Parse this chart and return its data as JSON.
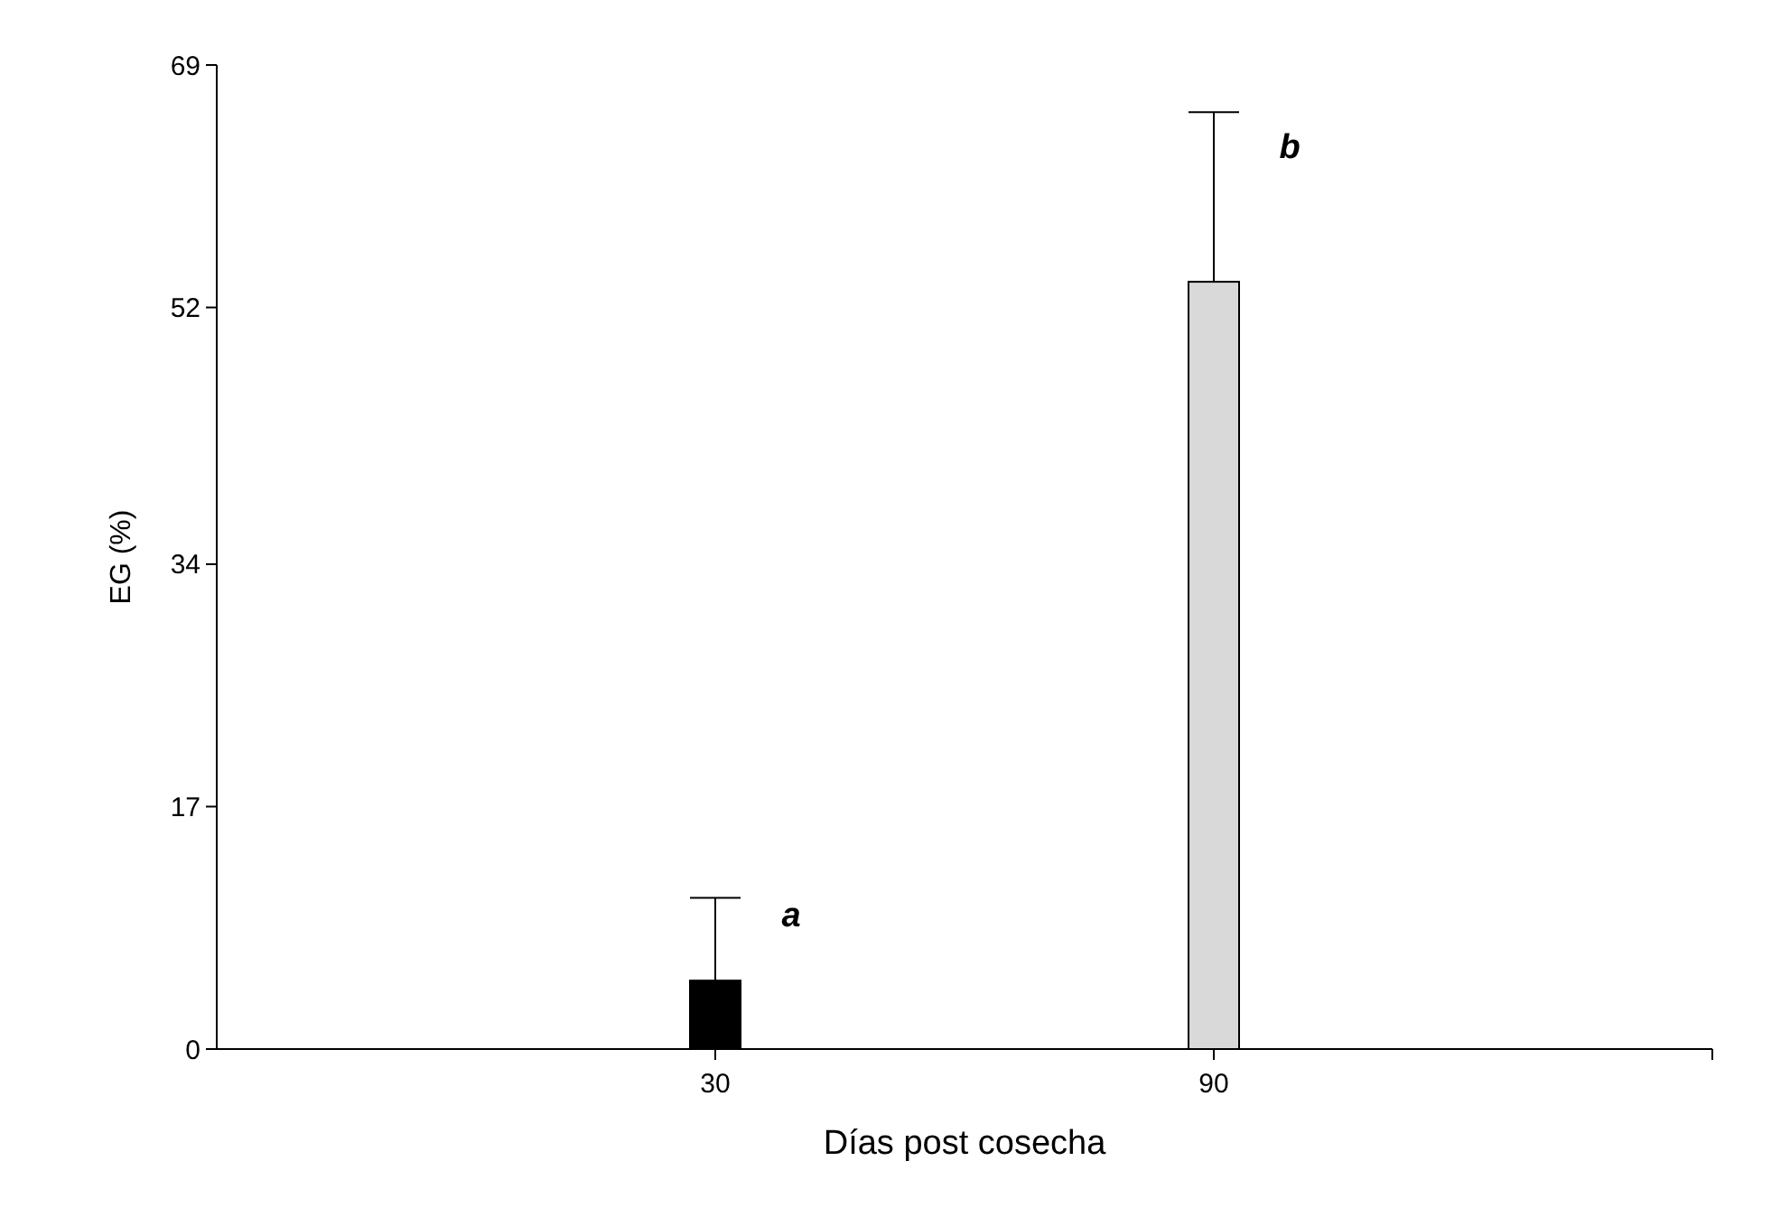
{
  "chart_data": {
    "type": "bar",
    "xlabel": "Días post cosecha",
    "ylabel": "EG (%)",
    "x": [
      30,
      90
    ],
    "values": [
      4.8,
      53.8
    ],
    "colors": [
      "#000000",
      "#d9d9d9"
    ],
    "errors": [
      [
        4.8,
        10.6
      ],
      [
        53.8,
        65.7
      ]
    ],
    "xlim": [
      -30,
      150
    ],
    "xticks": [
      30,
      90
    ],
    "ylim": [
      0,
      69
    ],
    "yticks": [
      0,
      17,
      34,
      52,
      69
    ],
    "annotations": [
      "a",
      "b"
    ],
    "grid": false
  }
}
